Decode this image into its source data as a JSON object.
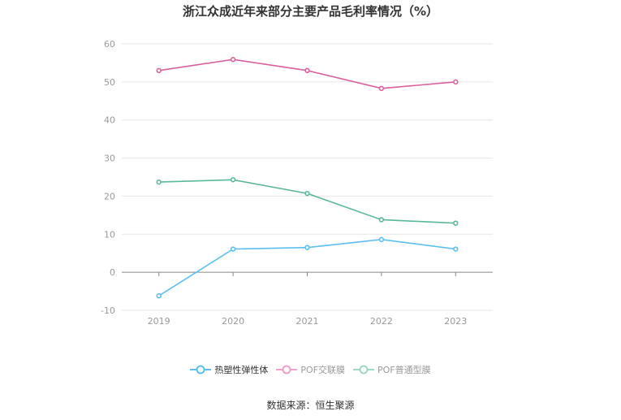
{
  "chart_data": {
    "type": "line",
    "title": "浙江众成近年来部分主要产品毛利率情况（%）",
    "categories": [
      "2019",
      "2020",
      "2021",
      "2022",
      "2023"
    ],
    "ylim": [
      -10,
      60
    ],
    "yticks": [
      -10,
      0,
      10,
      20,
      30,
      40,
      50,
      60
    ],
    "grid": true,
    "legend_position": "bottom",
    "series": [
      {
        "name": "热塑性弹性体",
        "color": "#5bc0f0",
        "values": [
          -6.2,
          6.1,
          6.5,
          8.6,
          6.1
        ]
      },
      {
        "name": "POF交联膜",
        "color": "#d9609e",
        "values": [
          53.0,
          55.9,
          53.0,
          48.3,
          50.0
        ]
      },
      {
        "name": "POF普通型膜",
        "color": "#5ab89b",
        "values": [
          23.7,
          24.3,
          20.7,
          13.8,
          12.9
        ]
      }
    ],
    "source": "数据来源：恒生聚源"
  }
}
